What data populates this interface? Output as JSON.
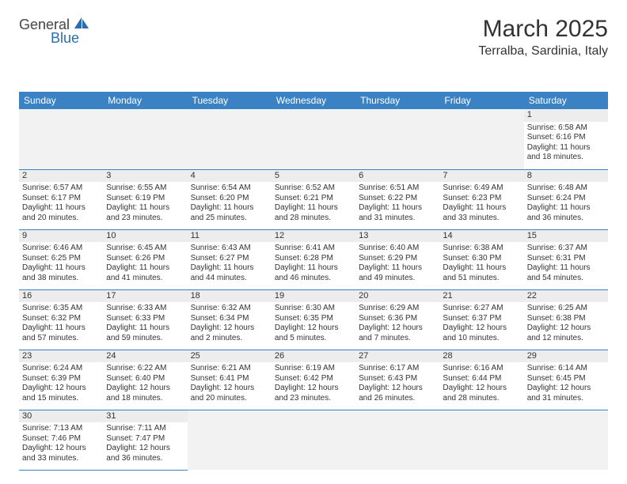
{
  "logo": {
    "part1": "General",
    "part2": "Blue",
    "icon_color": "#2a6db0"
  },
  "header": {
    "title": "March 2025",
    "location": "Terralba, Sardinia, Italy"
  },
  "colors": {
    "header_bg": "#3b82c4",
    "header_fg": "#ffffff",
    "grid_line": "#3b82c4",
    "daynum_bg": "#ededed"
  },
  "day_names": [
    "Sunday",
    "Monday",
    "Tuesday",
    "Wednesday",
    "Thursday",
    "Friday",
    "Saturday"
  ],
  "weeks": [
    [
      {
        "empty": true
      },
      {
        "empty": true
      },
      {
        "empty": true
      },
      {
        "empty": true
      },
      {
        "empty": true
      },
      {
        "empty": true
      },
      {
        "n": "1",
        "sunrise": "Sunrise: 6:58 AM",
        "sunset": "Sunset: 6:16 PM",
        "day1": "Daylight: 11 hours",
        "day2": "and 18 minutes."
      }
    ],
    [
      {
        "n": "2",
        "sunrise": "Sunrise: 6:57 AM",
        "sunset": "Sunset: 6:17 PM",
        "day1": "Daylight: 11 hours",
        "day2": "and 20 minutes."
      },
      {
        "n": "3",
        "sunrise": "Sunrise: 6:55 AM",
        "sunset": "Sunset: 6:19 PM",
        "day1": "Daylight: 11 hours",
        "day2": "and 23 minutes."
      },
      {
        "n": "4",
        "sunrise": "Sunrise: 6:54 AM",
        "sunset": "Sunset: 6:20 PM",
        "day1": "Daylight: 11 hours",
        "day2": "and 25 minutes."
      },
      {
        "n": "5",
        "sunrise": "Sunrise: 6:52 AM",
        "sunset": "Sunset: 6:21 PM",
        "day1": "Daylight: 11 hours",
        "day2": "and 28 minutes."
      },
      {
        "n": "6",
        "sunrise": "Sunrise: 6:51 AM",
        "sunset": "Sunset: 6:22 PM",
        "day1": "Daylight: 11 hours",
        "day2": "and 31 minutes."
      },
      {
        "n": "7",
        "sunrise": "Sunrise: 6:49 AM",
        "sunset": "Sunset: 6:23 PM",
        "day1": "Daylight: 11 hours",
        "day2": "and 33 minutes."
      },
      {
        "n": "8",
        "sunrise": "Sunrise: 6:48 AM",
        "sunset": "Sunset: 6:24 PM",
        "day1": "Daylight: 11 hours",
        "day2": "and 36 minutes."
      }
    ],
    [
      {
        "n": "9",
        "sunrise": "Sunrise: 6:46 AM",
        "sunset": "Sunset: 6:25 PM",
        "day1": "Daylight: 11 hours",
        "day2": "and 38 minutes."
      },
      {
        "n": "10",
        "sunrise": "Sunrise: 6:45 AM",
        "sunset": "Sunset: 6:26 PM",
        "day1": "Daylight: 11 hours",
        "day2": "and 41 minutes."
      },
      {
        "n": "11",
        "sunrise": "Sunrise: 6:43 AM",
        "sunset": "Sunset: 6:27 PM",
        "day1": "Daylight: 11 hours",
        "day2": "and 44 minutes."
      },
      {
        "n": "12",
        "sunrise": "Sunrise: 6:41 AM",
        "sunset": "Sunset: 6:28 PM",
        "day1": "Daylight: 11 hours",
        "day2": "and 46 minutes."
      },
      {
        "n": "13",
        "sunrise": "Sunrise: 6:40 AM",
        "sunset": "Sunset: 6:29 PM",
        "day1": "Daylight: 11 hours",
        "day2": "and 49 minutes."
      },
      {
        "n": "14",
        "sunrise": "Sunrise: 6:38 AM",
        "sunset": "Sunset: 6:30 PM",
        "day1": "Daylight: 11 hours",
        "day2": "and 51 minutes."
      },
      {
        "n": "15",
        "sunrise": "Sunrise: 6:37 AM",
        "sunset": "Sunset: 6:31 PM",
        "day1": "Daylight: 11 hours",
        "day2": "and 54 minutes."
      }
    ],
    [
      {
        "n": "16",
        "sunrise": "Sunrise: 6:35 AM",
        "sunset": "Sunset: 6:32 PM",
        "day1": "Daylight: 11 hours",
        "day2": "and 57 minutes."
      },
      {
        "n": "17",
        "sunrise": "Sunrise: 6:33 AM",
        "sunset": "Sunset: 6:33 PM",
        "day1": "Daylight: 11 hours",
        "day2": "and 59 minutes."
      },
      {
        "n": "18",
        "sunrise": "Sunrise: 6:32 AM",
        "sunset": "Sunset: 6:34 PM",
        "day1": "Daylight: 12 hours",
        "day2": "and 2 minutes."
      },
      {
        "n": "19",
        "sunrise": "Sunrise: 6:30 AM",
        "sunset": "Sunset: 6:35 PM",
        "day1": "Daylight: 12 hours",
        "day2": "and 5 minutes."
      },
      {
        "n": "20",
        "sunrise": "Sunrise: 6:29 AM",
        "sunset": "Sunset: 6:36 PM",
        "day1": "Daylight: 12 hours",
        "day2": "and 7 minutes."
      },
      {
        "n": "21",
        "sunrise": "Sunrise: 6:27 AM",
        "sunset": "Sunset: 6:37 PM",
        "day1": "Daylight: 12 hours",
        "day2": "and 10 minutes."
      },
      {
        "n": "22",
        "sunrise": "Sunrise: 6:25 AM",
        "sunset": "Sunset: 6:38 PM",
        "day1": "Daylight: 12 hours",
        "day2": "and 12 minutes."
      }
    ],
    [
      {
        "n": "23",
        "sunrise": "Sunrise: 6:24 AM",
        "sunset": "Sunset: 6:39 PM",
        "day1": "Daylight: 12 hours",
        "day2": "and 15 minutes."
      },
      {
        "n": "24",
        "sunrise": "Sunrise: 6:22 AM",
        "sunset": "Sunset: 6:40 PM",
        "day1": "Daylight: 12 hours",
        "day2": "and 18 minutes."
      },
      {
        "n": "25",
        "sunrise": "Sunrise: 6:21 AM",
        "sunset": "Sunset: 6:41 PM",
        "day1": "Daylight: 12 hours",
        "day2": "and 20 minutes."
      },
      {
        "n": "26",
        "sunrise": "Sunrise: 6:19 AM",
        "sunset": "Sunset: 6:42 PM",
        "day1": "Daylight: 12 hours",
        "day2": "and 23 minutes."
      },
      {
        "n": "27",
        "sunrise": "Sunrise: 6:17 AM",
        "sunset": "Sunset: 6:43 PM",
        "day1": "Daylight: 12 hours",
        "day2": "and 26 minutes."
      },
      {
        "n": "28",
        "sunrise": "Sunrise: 6:16 AM",
        "sunset": "Sunset: 6:44 PM",
        "day1": "Daylight: 12 hours",
        "day2": "and 28 minutes."
      },
      {
        "n": "29",
        "sunrise": "Sunrise: 6:14 AM",
        "sunset": "Sunset: 6:45 PM",
        "day1": "Daylight: 12 hours",
        "day2": "and 31 minutes."
      }
    ],
    [
      {
        "n": "30",
        "sunrise": "Sunrise: 7:13 AM",
        "sunset": "Sunset: 7:46 PM",
        "day1": "Daylight: 12 hours",
        "day2": "and 33 minutes."
      },
      {
        "n": "31",
        "sunrise": "Sunrise: 7:11 AM",
        "sunset": "Sunset: 7:47 PM",
        "day1": "Daylight: 12 hours",
        "day2": "and 36 minutes."
      },
      {
        "empty": true
      },
      {
        "empty": true
      },
      {
        "empty": true
      },
      {
        "empty": true
      },
      {
        "empty": true
      }
    ]
  ]
}
